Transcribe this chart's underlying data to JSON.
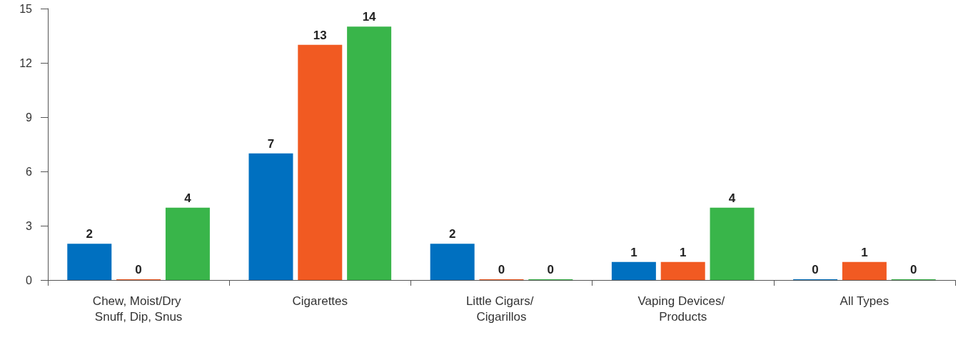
{
  "chart_data": {
    "type": "bar",
    "categories": [
      "Chew, Moist/Dry Snuff, Dip, Snus",
      "Cigarettes",
      "Little Cigars/ Cigarillos",
      "Vaping Devices/ Products",
      "All Types"
    ],
    "series": [
      {
        "color": "#0070c0",
        "values": [
          2,
          7,
          2,
          1,
          0
        ]
      },
      {
        "color": "#f15a22",
        "values": [
          0,
          13,
          0,
          1,
          1
        ]
      },
      {
        "color": "#39b54a",
        "values": [
          4,
          14,
          0,
          4,
          0
        ]
      }
    ],
    "ylim": [
      0,
      15
    ],
    "yticks": [
      0,
      3,
      6,
      9,
      12,
      15
    ],
    "grid": false,
    "data_labels": true
  }
}
